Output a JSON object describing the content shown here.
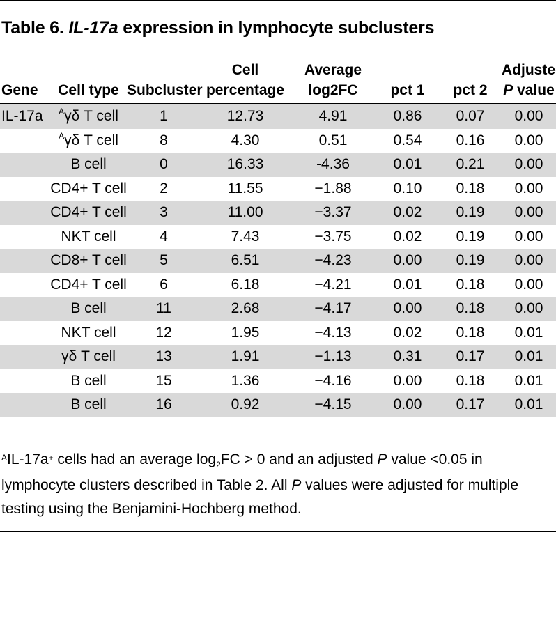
{
  "title": {
    "label": "Table 6.",
    "gene": "IL-17a",
    "rest": "expression in lymphocyte subclusters"
  },
  "headers": {
    "gene": "Gene",
    "cell_type": "Cell type",
    "subcluster": "Subcluster",
    "cell_pct_1": "Cell",
    "cell_pct_2": "percentage",
    "avg_1": "Average",
    "avg_2": "log2FC",
    "pct1": "pct 1",
    "pct2": "pct 2",
    "adj_1": "Adjusted",
    "adj_2_p": "P",
    "adj_2_rest": "value"
  },
  "rows": [
    {
      "gene": "IL-17a",
      "sup": "A",
      "cell_type": "γδ T cell",
      "subcluster": "1",
      "cell_pct": "12.73",
      "avg": "4.91",
      "pct1": "0.86",
      "pct2": "0.07",
      "adj": "0.00"
    },
    {
      "gene": "",
      "sup": "A",
      "cell_type": "γδ T cell",
      "subcluster": "8",
      "cell_pct": "4.30",
      "avg": "0.51",
      "pct1": "0.54",
      "pct2": "0.16",
      "adj": "0.00"
    },
    {
      "gene": "",
      "sup": "",
      "cell_type": "B cell",
      "subcluster": "0",
      "cell_pct": "16.33",
      "avg": "-4.36",
      "pct1": "0.01",
      "pct2": "0.21",
      "adj": "0.00"
    },
    {
      "gene": "",
      "sup": "",
      "cell_type": "CD4+ T cell",
      "subcluster": "2",
      "cell_pct": "11.55",
      "avg": "−1.88",
      "pct1": "0.10",
      "pct2": "0.18",
      "adj": "0.00"
    },
    {
      "gene": "",
      "sup": "",
      "cell_type": "CD4+ T cell",
      "subcluster": "3",
      "cell_pct": "11.00",
      "avg": "−3.37",
      "pct1": "0.02",
      "pct2": "0.19",
      "adj": "0.00"
    },
    {
      "gene": "",
      "sup": "",
      "cell_type": "NKT cell",
      "subcluster": "4",
      "cell_pct": "7.43",
      "avg": "−3.75",
      "pct1": "0.02",
      "pct2": "0.19",
      "adj": "0.00"
    },
    {
      "gene": "",
      "sup": "",
      "cell_type": "CD8+ T cell",
      "subcluster": "5",
      "cell_pct": "6.51",
      "avg": "−4.23",
      "pct1": "0.00",
      "pct2": "0.19",
      "adj": "0.00"
    },
    {
      "gene": "",
      "sup": "",
      "cell_type": "CD4+ T cell",
      "subcluster": "6",
      "cell_pct": "6.18",
      "avg": "−4.21",
      "pct1": "0.01",
      "pct2": "0.18",
      "adj": "0.00"
    },
    {
      "gene": "",
      "sup": "",
      "cell_type": "B cell",
      "subcluster": "11",
      "cell_pct": "2.68",
      "avg": "−4.17",
      "pct1": "0.00",
      "pct2": "0.18",
      "adj": "0.00"
    },
    {
      "gene": "",
      "sup": "",
      "cell_type": "NKT cell",
      "subcluster": "12",
      "cell_pct": "1.95",
      "avg": "−4.13",
      "pct1": "0.02",
      "pct2": "0.18",
      "adj": "0.01"
    },
    {
      "gene": "",
      "sup": "",
      "cell_type": "γδ T cell",
      "subcluster": "13",
      "cell_pct": "1.91",
      "avg": "−1.13",
      "pct1": "0.31",
      "pct2": "0.17",
      "adj": "0.01"
    },
    {
      "gene": "",
      "sup": "",
      "cell_type": "B cell",
      "subcluster": "15",
      "cell_pct": "1.36",
      "avg": "−4.16",
      "pct1": "0.00",
      "pct2": "0.18",
      "adj": "0.01"
    },
    {
      "gene": "",
      "sup": "",
      "cell_type": "B cell",
      "subcluster": "16",
      "cell_pct": "0.92",
      "avg": "−4.15",
      "pct1": "0.00",
      "pct2": "0.17",
      "adj": "0.01"
    }
  ],
  "footnote": {
    "marker": "A",
    "t1": "IL-17a",
    "t1_sup": "+",
    "t2": " cells had an average log",
    "t2_sub": "2",
    "t3": "FC > 0 and an adjusted ",
    "p1": "P",
    "t4": " value <0.05 in lymphocyte clusters described in Table 2. All ",
    "p2": "P",
    "t5": " values were adjusted for multiple testing using the Benjamini-Hochberg method."
  }
}
